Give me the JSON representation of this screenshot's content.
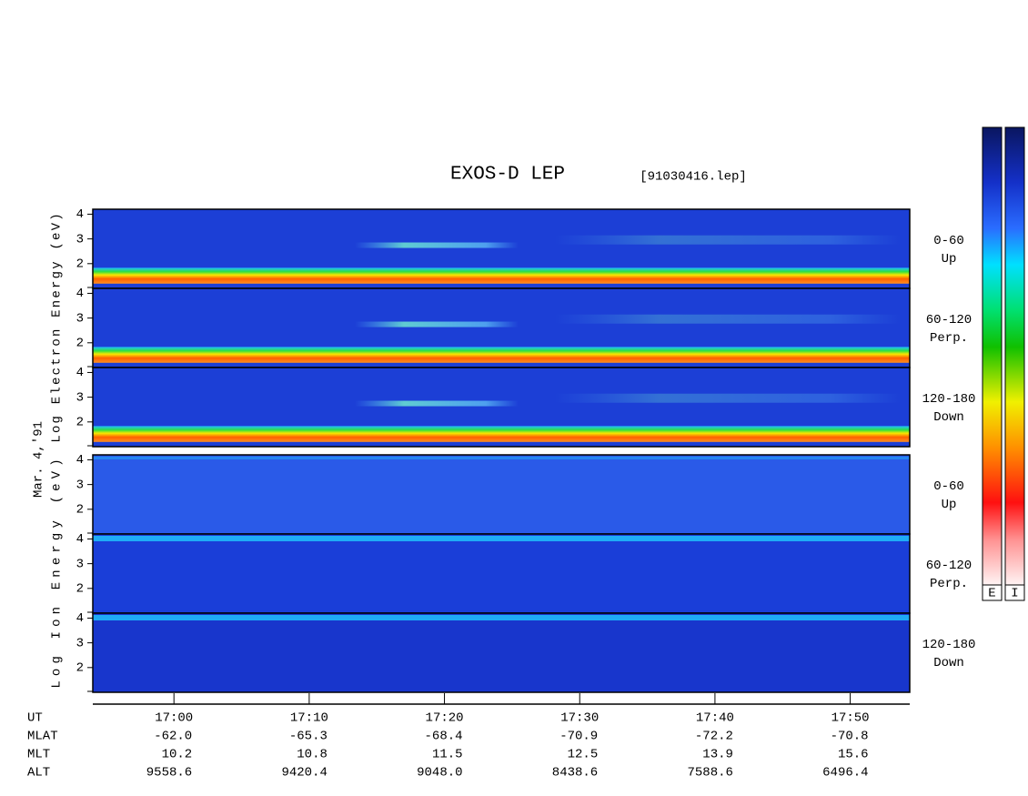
{
  "chart_data": {
    "type": "spectrogram",
    "title": "EXOS-D LEP",
    "file_label": "[91030416.lep]",
    "date_label": "Mar. 4,'91",
    "x_label": "UT",
    "xlim": [
      1014,
      1074.4
    ],
    "xticks": [
      {
        "value": 1020,
        "label": "17:00"
      },
      {
        "value": 1030,
        "label": "17:10"
      },
      {
        "value": 1040,
        "label": "17:20"
      },
      {
        "value": 1050,
        "label": "17:30"
      },
      {
        "value": 1060,
        "label": "17:40"
      },
      {
        "value": 1070,
        "label": "17:50"
      }
    ],
    "ephemeris": [
      {
        "name": "MLAT",
        "values": [
          "-62.0",
          "-65.3",
          "-68.4",
          "-70.9",
          "-72.2",
          "-70.8"
        ]
      },
      {
        "name": "MLT",
        "values": [
          "10.2",
          "10.8",
          "11.5",
          "12.5",
          "13.9",
          "15.6"
        ]
      },
      {
        "name": "ALT",
        "values": [
          "9558.6",
          "9420.4",
          "9048.0",
          "8438.6",
          "7588.6",
          "6496.4"
        ]
      }
    ],
    "ylim": [
      1,
      4.2
    ],
    "yticks": [
      2,
      3,
      4
    ],
    "groups": [
      {
        "ylabel": "Log Electron Energy (eV)",
        "panels": [
          {
            "pitch": "0-60",
            "direction": "Up"
          },
          {
            "pitch": "60-120",
            "direction": "Perp."
          },
          {
            "pitch": "120-180",
            "direction": "Down"
          }
        ]
      },
      {
        "ylabel": "Log Ion Energy (eV)",
        "panels": [
          {
            "pitch": "0-60",
            "direction": "Up"
          },
          {
            "pitch": "60-120",
            "direction": "Perp."
          },
          {
            "pitch": "120-180",
            "direction": "Down"
          }
        ]
      }
    ],
    "colorbars": [
      "E",
      "I"
    ]
  }
}
